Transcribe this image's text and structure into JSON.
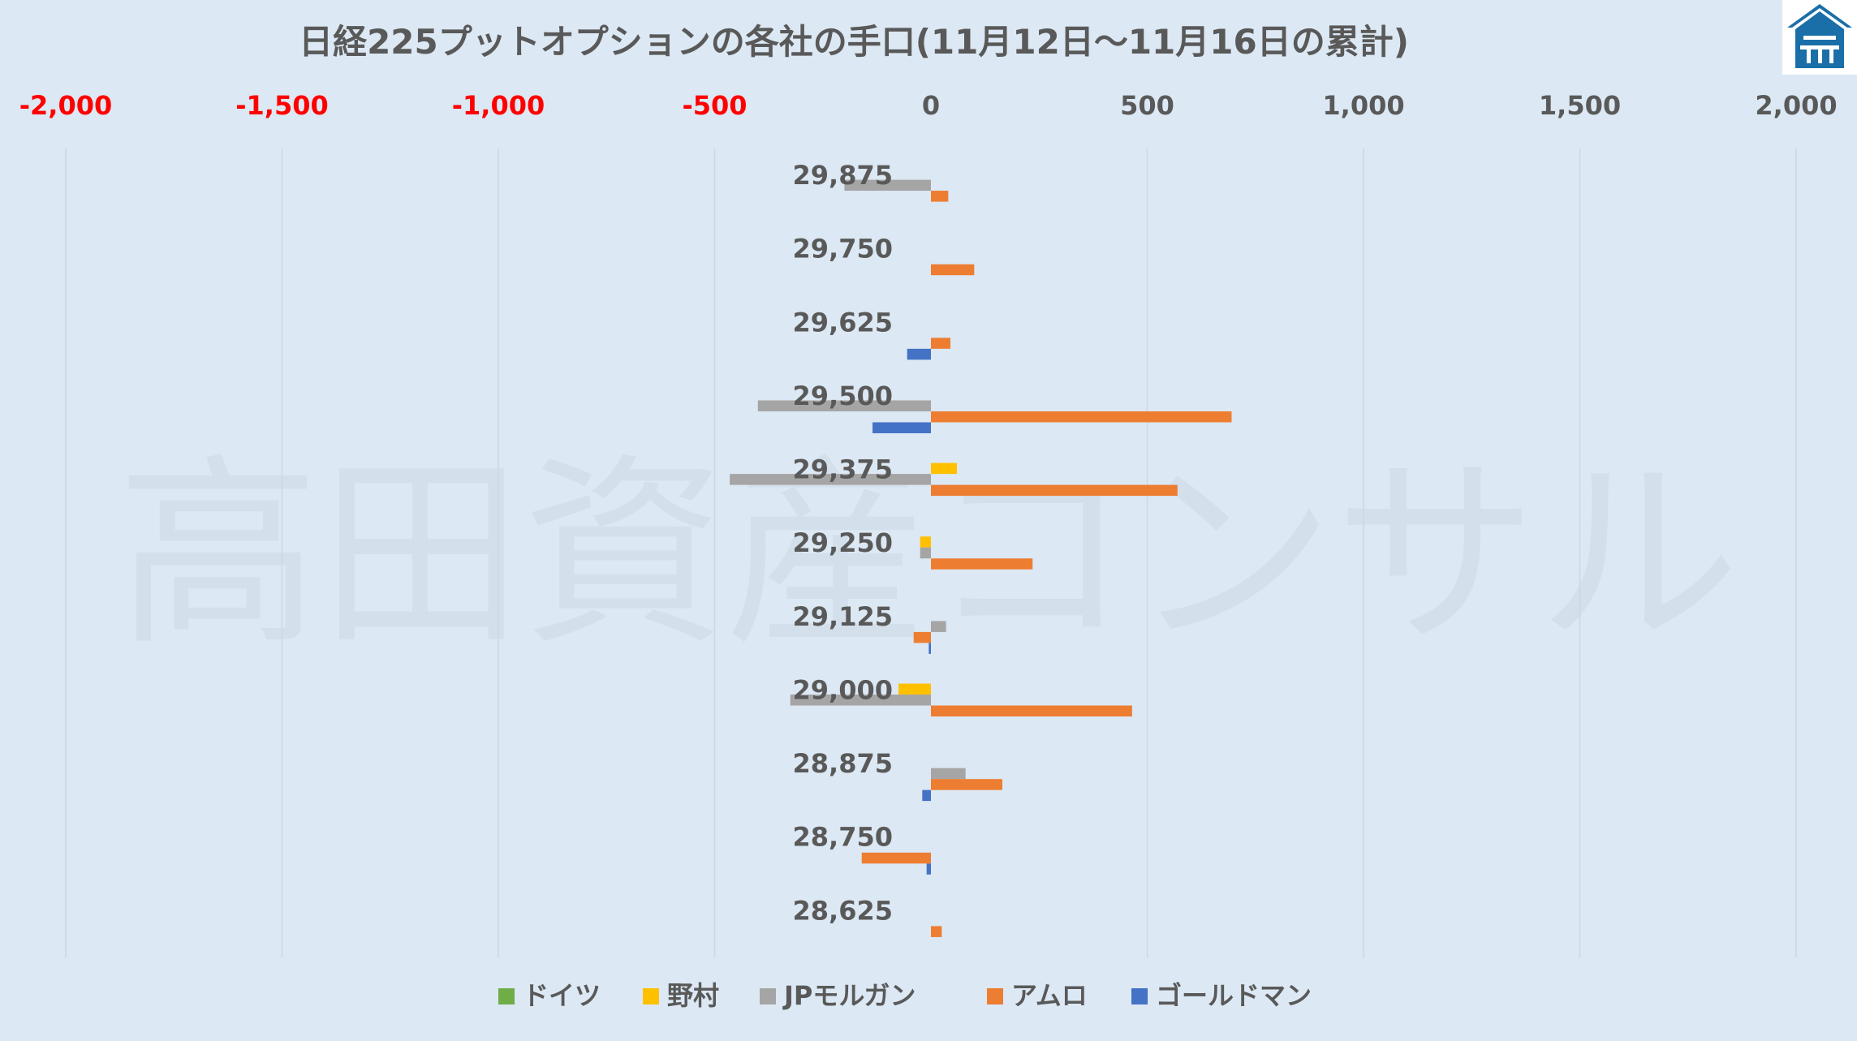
{
  "chart_data": {
    "type": "bar",
    "orientation": "horizontal",
    "title": "日経225プットオプションの各社の手口(11月12日～11月16日の累計)",
    "watermark": "高田資産コンサル",
    "xlim": [
      -2000,
      2000
    ],
    "xticks": [
      -2000,
      -1500,
      -1000,
      -500,
      0,
      500,
      1000,
      1500,
      2000
    ],
    "xtick_labels": [
      "-2,000",
      "-1,500",
      "-1,000",
      "-500",
      "0",
      "500",
      "1,000",
      "1,500",
      "2,000"
    ],
    "negative_tick_color": "#ff0000",
    "tick_color": "#595959",
    "categories": [
      "29,875",
      "29,750",
      "29,625",
      "29,500",
      "29,375",
      "29,250",
      "29,125",
      "29,000",
      "28,875",
      "28,750",
      "28,625"
    ],
    "legend_position": "bottom",
    "grid": "vertical",
    "series": [
      {
        "name": "ドイツ",
        "color": "#70ad47",
        "values": [
          0,
          0,
          0,
          0,
          0,
          0,
          0,
          0,
          0,
          0,
          0
        ]
      },
      {
        "name": "野村",
        "color": "#ffc000",
        "values": [
          0,
          0,
          0,
          0,
          60,
          -25,
          0,
          -75,
          0,
          0,
          0
        ]
      },
      {
        "name": "JPモルガン",
        "color": "#a5a5a5",
        "values": [
          -200,
          0,
          0,
          -400,
          -465,
          -25,
          35,
          -325,
          80,
          0,
          0
        ]
      },
      {
        "name": "アムロ",
        "color": "#ed7d31",
        "values": [
          40,
          100,
          45,
          695,
          570,
          235,
          -40,
          465,
          165,
          -160,
          25
        ]
      },
      {
        "name": "ゴールドマン",
        "color": "#4472c4",
        "values": [
          0,
          0,
          -55,
          -135,
          0,
          0,
          -5,
          0,
          -20,
          -10,
          0
        ]
      }
    ]
  },
  "logo": {
    "name": "company-logo-icon",
    "color": "#1a6fa8"
  }
}
